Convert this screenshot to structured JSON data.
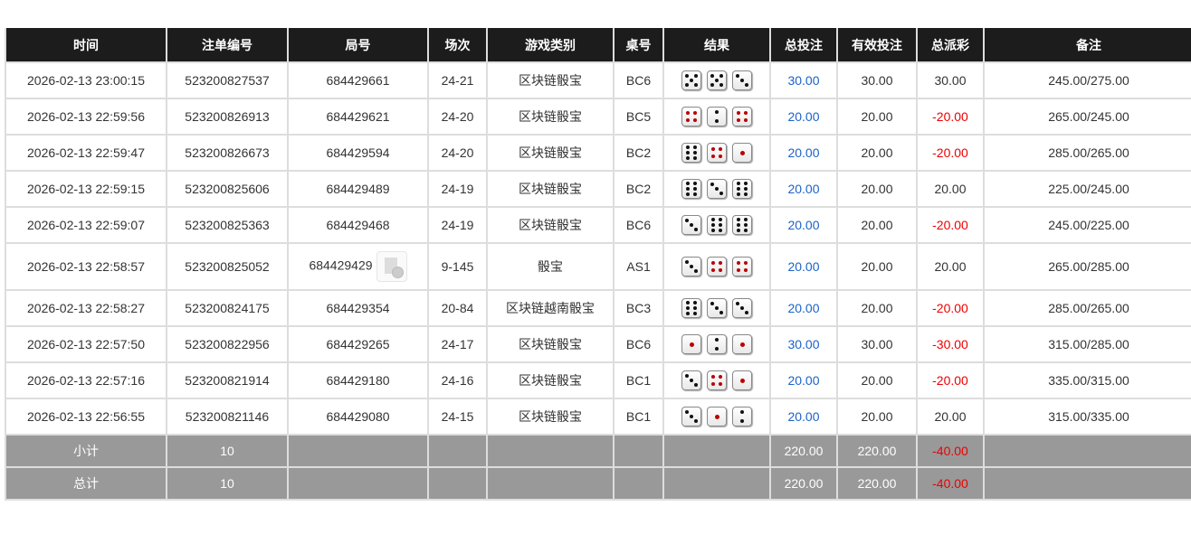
{
  "headers": [
    "时间",
    "注单编号",
    "局号",
    "场次",
    "游戏类别",
    "桌号",
    "结果",
    "总投注",
    "有效投注",
    "总派彩",
    "备注"
  ],
  "rows": [
    {
      "time": "2026-02-13 23:00:15",
      "bet_id": "523200827537",
      "round": "684429661",
      "session": "24-21",
      "game": "区块链骰宝",
      "table": "BC6",
      "dice": [
        5,
        5,
        3
      ],
      "total_bet": "30.00",
      "valid_bet": "30.00",
      "payout": "30.00",
      "payout_neg": false,
      "note": "245.00/275.00"
    },
    {
      "time": "2026-02-13 22:59:56",
      "bet_id": "523200826913",
      "round": "684429621",
      "session": "24-20",
      "game": "区块链骰宝",
      "table": "BC5",
      "dice": [
        4,
        2,
        4
      ],
      "total_bet": "20.00",
      "valid_bet": "20.00",
      "payout": "-20.00",
      "payout_neg": true,
      "note": "265.00/245.00"
    },
    {
      "time": "2026-02-13 22:59:47",
      "bet_id": "523200826673",
      "round": "684429594",
      "session": "24-20",
      "game": "区块链骰宝",
      "table": "BC2",
      "dice": [
        6,
        4,
        1
      ],
      "total_bet": "20.00",
      "valid_bet": "20.00",
      "payout": "-20.00",
      "payout_neg": true,
      "note": "285.00/265.00"
    },
    {
      "time": "2026-02-13 22:59:15",
      "bet_id": "523200825606",
      "round": "684429489",
      "session": "24-19",
      "game": "区块链骰宝",
      "table": "BC2",
      "dice": [
        6,
        3,
        6
      ],
      "total_bet": "20.00",
      "valid_bet": "20.00",
      "payout": "20.00",
      "payout_neg": false,
      "note": "225.00/245.00"
    },
    {
      "time": "2026-02-13 22:59:07",
      "bet_id": "523200825363",
      "round": "684429468",
      "session": "24-19",
      "game": "区块链骰宝",
      "table": "BC6",
      "dice": [
        3,
        6,
        6
      ],
      "total_bet": "20.00",
      "valid_bet": "20.00",
      "payout": "-20.00",
      "payout_neg": true,
      "note": "245.00/225.00"
    },
    {
      "time": "2026-02-13 22:58:57",
      "bet_id": "523200825052",
      "round": "684429429",
      "has_video": true,
      "session": "9-145",
      "game": "骰宝",
      "table": "AS1",
      "dice": [
        3,
        4,
        4
      ],
      "total_bet": "20.00",
      "valid_bet": "20.00",
      "payout": "20.00",
      "payout_neg": false,
      "note": "265.00/285.00"
    },
    {
      "time": "2026-02-13 22:58:27",
      "bet_id": "523200824175",
      "round": "684429354",
      "session": "20-84",
      "game": "区块链越南骰宝",
      "table": "BC3",
      "dice": [
        6,
        3,
        3
      ],
      "total_bet": "20.00",
      "valid_bet": "20.00",
      "payout": "-20.00",
      "payout_neg": true,
      "note": "285.00/265.00"
    },
    {
      "time": "2026-02-13 22:57:50",
      "bet_id": "523200822956",
      "round": "684429265",
      "session": "24-17",
      "game": "区块链骰宝",
      "table": "BC6",
      "dice": [
        1,
        2,
        1
      ],
      "total_bet": "30.00",
      "valid_bet": "30.00",
      "payout": "-30.00",
      "payout_neg": true,
      "note": "315.00/285.00"
    },
    {
      "time": "2026-02-13 22:57:16",
      "bet_id": "523200821914",
      "round": "684429180",
      "session": "24-16",
      "game": "区块链骰宝",
      "table": "BC1",
      "dice": [
        3,
        4,
        1
      ],
      "total_bet": "20.00",
      "valid_bet": "20.00",
      "payout": "-20.00",
      "payout_neg": true,
      "note": "335.00/315.00"
    },
    {
      "time": "2026-02-13 22:56:55",
      "bet_id": "523200821146",
      "round": "684429080",
      "session": "24-15",
      "game": "区块链骰宝",
      "table": "BC1",
      "dice": [
        3,
        1,
        2
      ],
      "total_bet": "20.00",
      "valid_bet": "20.00",
      "payout": "20.00",
      "payout_neg": false,
      "note": "315.00/335.00"
    }
  ],
  "footer": [
    {
      "label": "小计",
      "count": "10",
      "total_bet": "220.00",
      "valid_bet": "220.00",
      "payout": "-40.00"
    },
    {
      "label": "总计",
      "count": "10",
      "total_bet": "220.00",
      "valid_bet": "220.00",
      "payout": "-40.00"
    }
  ],
  "colors": {
    "header_bg": "#1c1c1c",
    "bet_blue": "#1a62c9",
    "negative_red": "#e00",
    "footer_bg": "#999999"
  }
}
